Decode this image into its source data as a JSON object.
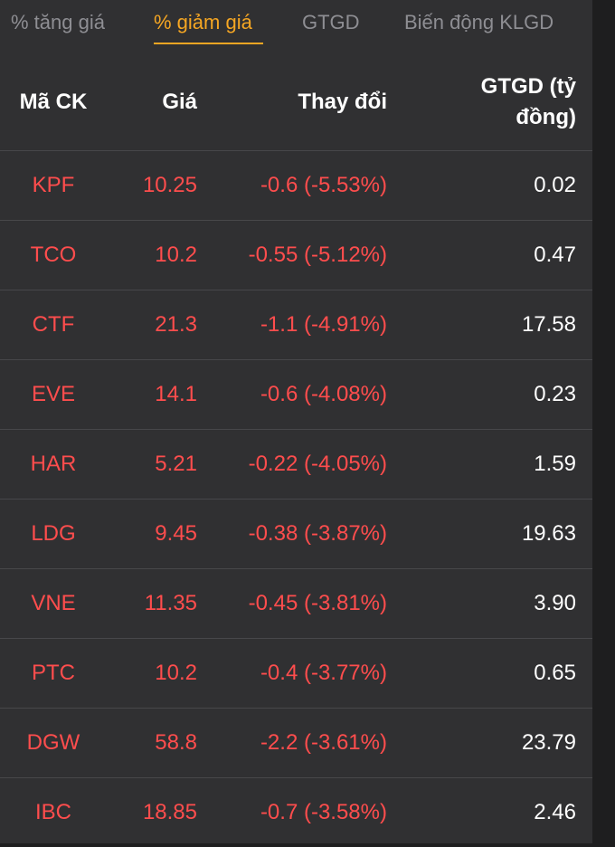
{
  "tabs": [
    {
      "label": "% tăng giá",
      "active": false
    },
    {
      "label": "% giảm giá",
      "active": true
    },
    {
      "label": "GTGD",
      "active": false
    },
    {
      "label": "Biến động KLGD",
      "active": false
    }
  ],
  "table": {
    "headers": {
      "symbol": "Mã CK",
      "price": "Giá",
      "change": "Thay đổi",
      "value_line1": "GTGD (tỷ",
      "value_line2": "đồng)"
    },
    "rows": [
      {
        "symbol": "KPF",
        "price": "10.25",
        "change": "-0.6 (-5.53%)",
        "value": "0.02"
      },
      {
        "symbol": "TCO",
        "price": "10.2",
        "change": "-0.55 (-5.12%)",
        "value": "0.47"
      },
      {
        "symbol": "CTF",
        "price": "21.3",
        "change": "-1.1 (-4.91%)",
        "value": "17.58"
      },
      {
        "symbol": "EVE",
        "price": "14.1",
        "change": "-0.6 (-4.08%)",
        "value": "0.23"
      },
      {
        "symbol": "HAR",
        "price": "5.21",
        "change": "-0.22 (-4.05%)",
        "value": "1.59"
      },
      {
        "symbol": "LDG",
        "price": "9.45",
        "change": "-0.38 (-3.87%)",
        "value": "19.63"
      },
      {
        "symbol": "VNE",
        "price": "11.35",
        "change": "-0.45 (-3.81%)",
        "value": "3.90"
      },
      {
        "symbol": "PTC",
        "price": "10.2",
        "change": "-0.4 (-3.77%)",
        "value": "0.65"
      },
      {
        "symbol": "DGW",
        "price": "58.8",
        "change": "-2.2 (-3.61%)",
        "value": "23.79"
      },
      {
        "symbol": "IBC",
        "price": "18.85",
        "change": "-0.7 (-3.58%)",
        "value": "2.46"
      }
    ]
  },
  "colors": {
    "background": "#303032",
    "accent": "#f5a623",
    "decrease": "#ff4d4d",
    "text": "#ffffff",
    "muted": "#8e8e93"
  }
}
